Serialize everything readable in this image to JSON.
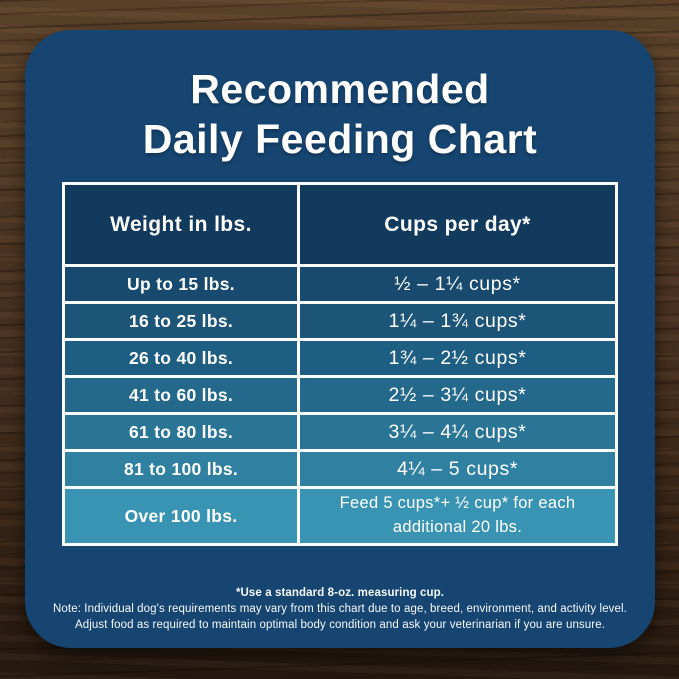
{
  "title": {
    "line1": "Recommended",
    "line2": "Daily Feeding Chart"
  },
  "table": {
    "headers": [
      "Weight in lbs.",
      "Cups per day*"
    ],
    "rows": [
      {
        "weight": "Up to 15 lbs.",
        "cups": "½ – 1¼ cups*",
        "bg": "#174a6e"
      },
      {
        "weight": "16 to 25 lbs.",
        "cups": "1¼ – 1¾ cups*",
        "bg": "#1c5578"
      },
      {
        "weight": "26 to 40 lbs.",
        "cups": "1¾ – 2½ cups*",
        "bg": "#1f5e83"
      },
      {
        "weight": "41 to 60 lbs.",
        "cups": "2½ – 3¼ cups*",
        "bg": "#24688c"
      },
      {
        "weight": "61 to 80 lbs.",
        "cups": "3¼ – 4¼ cups*",
        "bg": "#2a7496"
      },
      {
        "weight": "81 to 100 lbs.",
        "cups": "4¼ – 5 cups*",
        "bg": "#3080a1"
      },
      {
        "weight": "Over 100 lbs.",
        "cups": "Feed 5 cups*+ ½ cup* for each additional 20 lbs.",
        "bg": "#3994b3"
      }
    ],
    "header_bg": "#123a5c"
  },
  "footnotes": {
    "line1": "*Use a standard 8-oz. measuring cup.",
    "line2": "Note: Individual dog's requirements may vary from this chart due to age, breed, environment, and activity level.",
    "line3": "Adjust food as required to maintain optimal body condition and ask your veterinarian if you are unsure."
  },
  "colors": {
    "card_bg": "#164571",
    "table_border": "#fbfcfd",
    "text": "#ffffff",
    "wood_dark": "#2b1c12",
    "wood_light": "#5d432b"
  },
  "chart_data": {
    "type": "table",
    "title": "Recommended Daily Feeding Chart",
    "columns": [
      "Weight in lbs.",
      "Cups per day*"
    ],
    "rows": [
      [
        "Up to 15 lbs.",
        "½ – 1¼ cups*"
      ],
      [
        "16 to 25 lbs.",
        "1¼ – 1¾ cups*"
      ],
      [
        "26 to 40 lbs.",
        "1¾ – 2½ cups*"
      ],
      [
        "41 to 60 lbs.",
        "2½ – 3¼ cups*"
      ],
      [
        "61 to 80 lbs.",
        "3¼ – 4¼ cups*"
      ],
      [
        "81 to 100 lbs.",
        "4¼ – 5 cups*"
      ],
      [
        "Over 100 lbs.",
        "Feed 5 cups*+ ½ cup* for each additional 20 lbs."
      ]
    ],
    "notes": [
      "*Use a standard 8-oz. measuring cup.",
      "Note: Individual dog's requirements may vary from this chart due to age, breed, environment, and activity level.",
      "Adjust food as required to maintain optimal body condition and ask your veterinarian if you are unsure."
    ]
  }
}
